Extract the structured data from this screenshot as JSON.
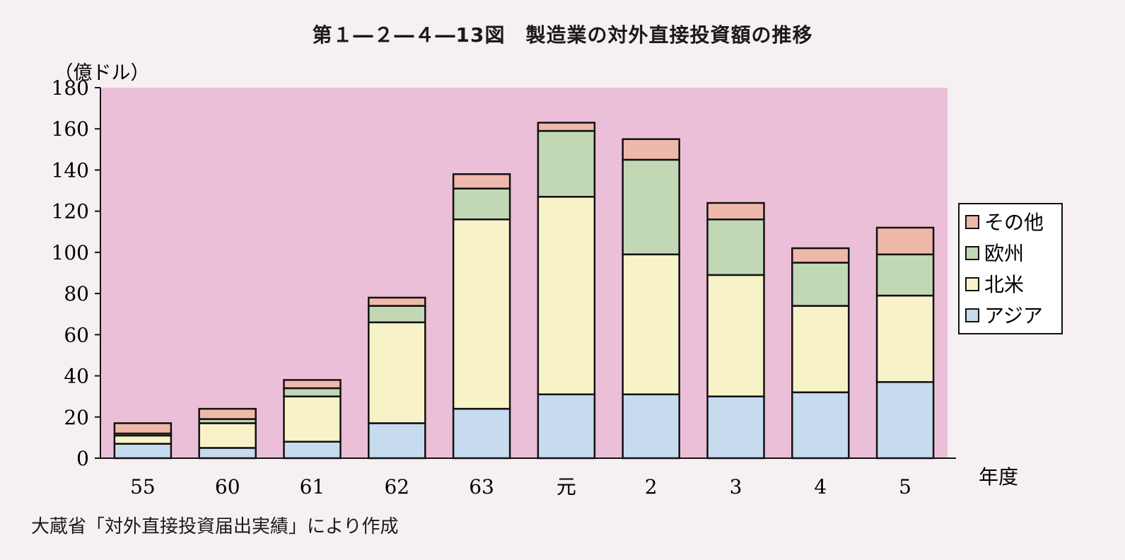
{
  "title": "第１―２―４―13図　製造業の対外直接投資額の推移",
  "source": "大蔵省「対外直接投資届出実績」により作成",
  "colors": {
    "plot_bg": "#ecbfd9",
    "asia": "#c6dcee",
    "north_america": "#f8f2c8",
    "europe": "#c2d7b4",
    "other": "#efb9aa",
    "frame": "#111111"
  },
  "chart_data": {
    "type": "bar",
    "stacked": true,
    "title": "第１―２―４―13図　製造業の対外直接投資額の推移",
    "ylabel": "（億ドル）",
    "xlabel": "年度",
    "ylim": [
      0,
      180
    ],
    "yticks": [
      0,
      20,
      40,
      60,
      80,
      100,
      120,
      140,
      160,
      180
    ],
    "grid": false,
    "legend_position": "right",
    "categories": [
      "55",
      "60",
      "61",
      "62",
      "63",
      "元",
      "2",
      "3",
      "4",
      "5"
    ],
    "series": [
      {
        "name": "アジア",
        "color_key": "asia",
        "values": [
          7,
          5,
          8,
          17,
          24,
          31,
          31,
          30,
          32,
          37
        ]
      },
      {
        "name": "北米",
        "color_key": "north_america",
        "values": [
          4,
          12,
          22,
          49,
          92,
          96,
          68,
          59,
          42,
          42
        ]
      },
      {
        "name": "欧州",
        "color_key": "europe",
        "values": [
          1,
          2,
          4,
          8,
          15,
          32,
          46,
          27,
          21,
          20
        ]
      },
      {
        "name": "その他",
        "color_key": "other",
        "values": [
          5,
          5,
          4,
          4,
          7,
          4,
          10,
          8,
          7,
          13
        ]
      }
    ]
  }
}
